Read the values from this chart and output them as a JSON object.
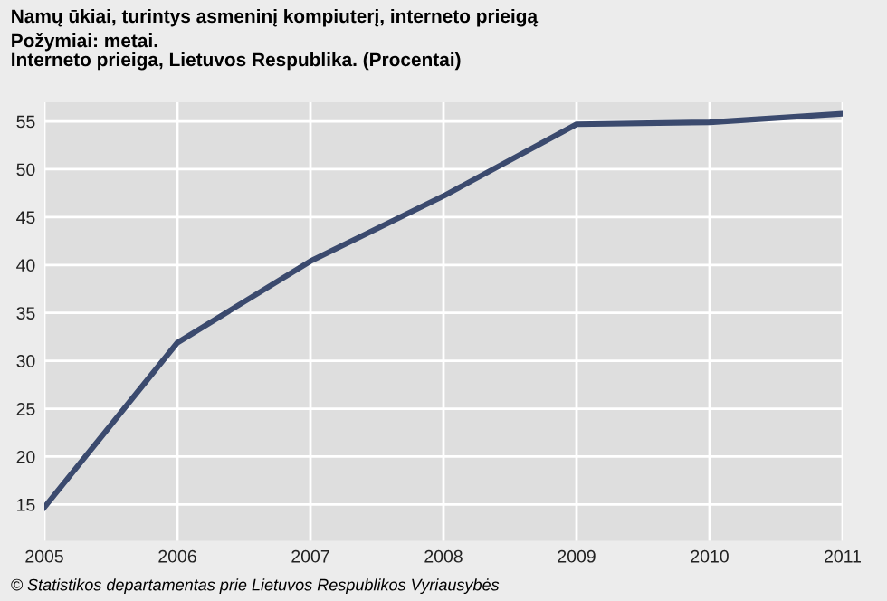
{
  "chart_data": {
    "type": "line",
    "title": "Namų ūkiai, turintys asmeninį kompiuterį, interneto prieigą",
    "subtitle": "Požymiai: metai.\nInterneto prieiga, Lietuvos Respublika. (Procentai)",
    "x": [
      2005,
      2006,
      2007,
      2008,
      2009,
      2010,
      2011
    ],
    "series": [
      {
        "color": "#3b4a6e",
        "values": [
          14.7,
          31.9,
          40.4,
          47.2,
          54.7,
          54.9,
          55.8
        ]
      }
    ],
    "xlim": [
      2005,
      2011
    ],
    "xticks": [
      2005,
      2006,
      2007,
      2008,
      2009,
      2010,
      2011
    ],
    "ylim": [
      11.2,
      57
    ],
    "yticks": [
      15,
      20,
      25,
      30,
      35,
      40,
      45,
      50,
      55
    ],
    "grid": true,
    "marker": "none",
    "line_style": "solid",
    "annotations": [
      "© Statistikos departamentas prie Lietuvos Respublikos Vyriausybės"
    ]
  }
}
